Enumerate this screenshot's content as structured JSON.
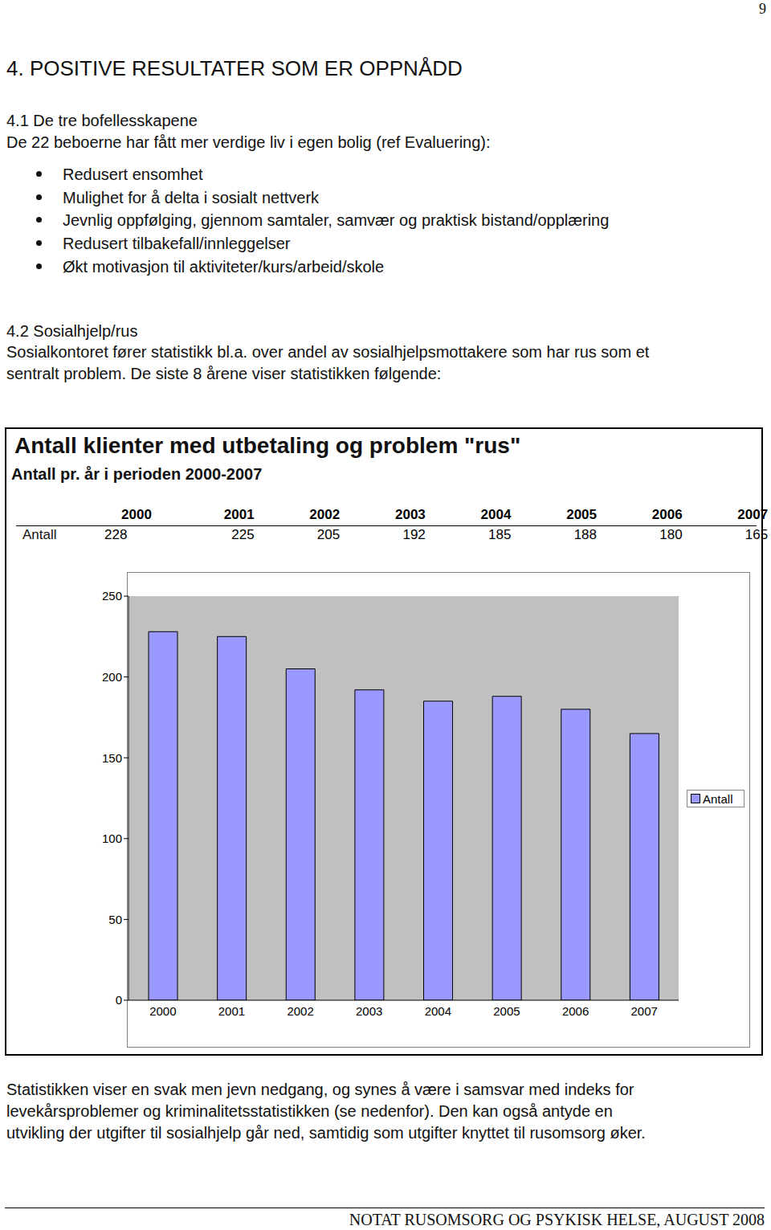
{
  "page_number": "9",
  "heading": "4. POSITIVE RESULTATER SOM ER OPPNÅDD",
  "section_1": {
    "title": "4.1 De tre bofellesskapene",
    "intro": "De 22 beboerne har fått mer verdige liv i egen bolig (ref Evaluering):",
    "bullets": [
      "Redusert ensomhet",
      "Mulighet for å delta i sosialt nettverk",
      "Jevnlig oppfølging, gjennom samtaler, samvær og praktisk bistand/opplæring",
      "Redusert tilbakefall/innleggelser",
      "Økt motivasjon til aktiviteter/kurs/arbeid/skole"
    ]
  },
  "section_2": {
    "title": "4.2 Sosialhjelp/rus",
    "text": [
      "Sosialkontoret fører statistikk bl.a. over andel av sosialhjelpsmottakere som har rus som et",
      "sentralt problem. De siste 8 årene viser statistikken følgende:"
    ]
  },
  "table": {
    "title": "Antall klienter med utbetaling og problem \"rus\"",
    "subtitle": "Antall pr. år i perioden 2000-2007",
    "row_label": "Antall",
    "columns": [
      "2000",
      "2001",
      "2002",
      "2003",
      "2004",
      "2005",
      "2006",
      "2007"
    ],
    "values": [
      228,
      225,
      205,
      192,
      185,
      188,
      180,
      165
    ]
  },
  "chart_data": {
    "type": "bar",
    "categories": [
      "2000",
      "2001",
      "2002",
      "2003",
      "2004",
      "2005",
      "2006",
      "2007"
    ],
    "series": [
      {
        "name": "Antall",
        "color": "#9999ff",
        "values": [
          228,
          225,
          205,
          192,
          185,
          188,
          180,
          165
        ]
      }
    ],
    "ylim": [
      0,
      250
    ],
    "yticks": [
      0,
      50,
      100,
      150,
      200,
      250
    ],
    "grid": false,
    "legend": "right"
  },
  "conclusion": [
    "Statistikken viser en svak men jevn nedgang, og synes å være i samsvar med indeks for",
    "levekårsproblemer og kriminalitetsstatistikken (se nedenfor). Den kan også antyde en",
    "utvikling der utgifter til sosialhjelp går ned, samtidig som utgifter knyttet til rusomsorg øker."
  ],
  "footer": "NOTAT RUSOMSORG OG PSYKISK HELSE, AUGUST 2008"
}
